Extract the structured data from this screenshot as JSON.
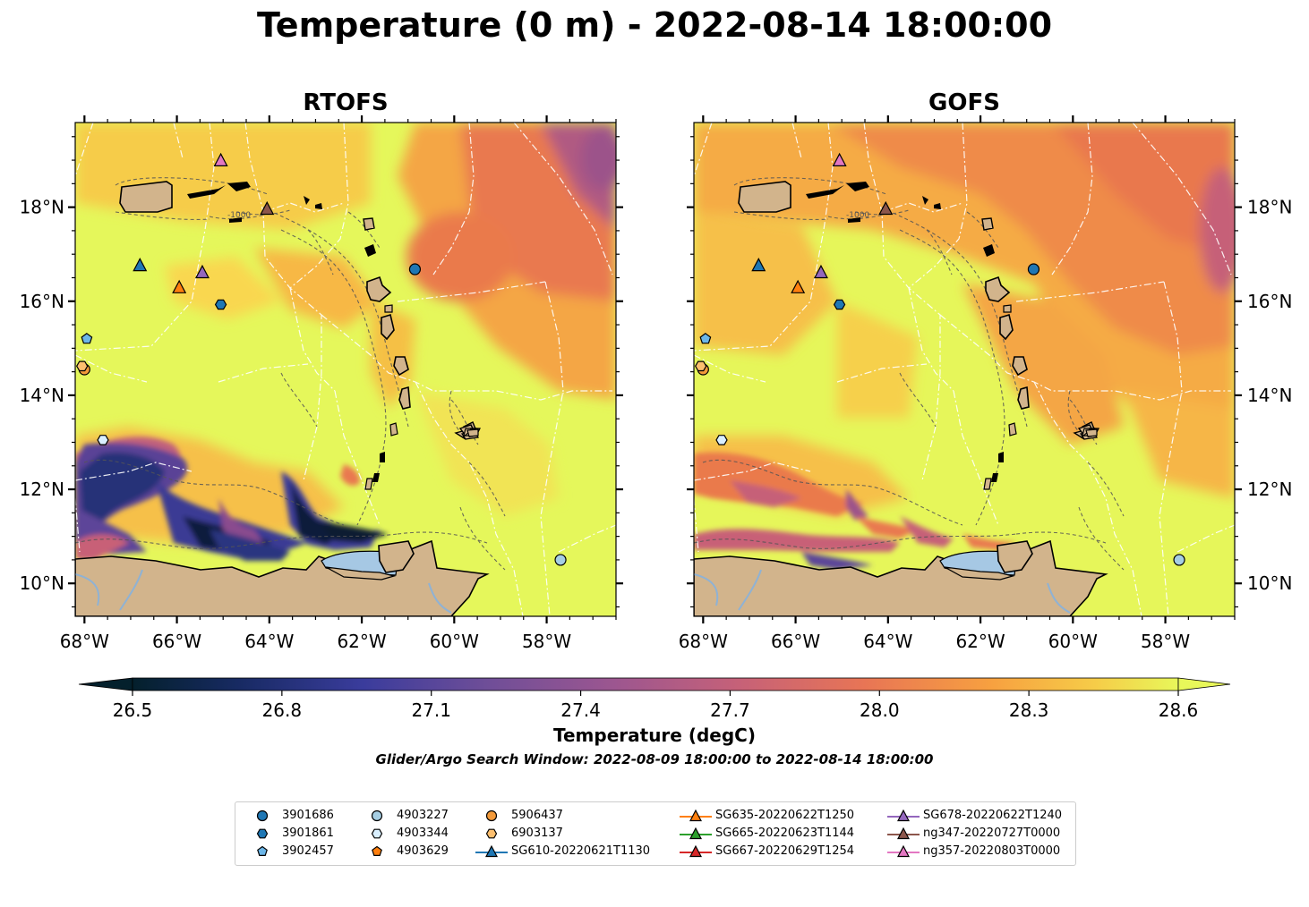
{
  "title": "Temperature (0 m) - 2022-08-14 18:00:00",
  "panels": [
    {
      "title": "RTOFS"
    },
    {
      "title": "GOFS"
    }
  ],
  "axes": {
    "lon_labels": [
      "68°W",
      "66°W",
      "64°W",
      "62°W",
      "60°W",
      "58°W"
    ],
    "lat_labels": [
      "18°N",
      "16°N",
      "14°N",
      "12°N",
      "10°N"
    ],
    "lon_range": [
      -68.2,
      -56.5
    ],
    "lat_range": [
      9.3,
      19.8
    ]
  },
  "colorbar": {
    "label": "Temperature (degC)",
    "ticks": [
      "26.5",
      "26.8",
      "27.1",
      "27.4",
      "27.7",
      "28.0",
      "28.3",
      "28.6"
    ],
    "range": [
      26.5,
      28.6
    ],
    "extend": "both",
    "colormap": "thermal"
  },
  "search_window": "Glider/Argo Search Window: 2022-08-09 18:00:00 to 2022-08-14 18:00:00",
  "contour_label": "-1000",
  "colors": {
    "land": "#d2b48c",
    "water_inland": "#a6c8e4",
    "warm": "#e5f75b",
    "mid": "#f6a540",
    "hot": "#e9774d",
    "cool": "#934c88",
    "cold": "#162552"
  },
  "legend": [
    {
      "label": "3901686",
      "marker": "circle",
      "color": "#1f77b4"
    },
    {
      "label": "3901861",
      "marker": "hexagon",
      "color": "#1f77b4"
    },
    {
      "label": "3902457",
      "marker": "pentagon",
      "color": "#6cb6e8"
    },
    {
      "label": "4903227",
      "marker": "circle",
      "color": "#a6cee3"
    },
    {
      "label": "4903344",
      "marker": "hexagon",
      "color": "#d9efff"
    },
    {
      "label": "4903629",
      "marker": "pentagon",
      "color": "#ff7f0e"
    },
    {
      "label": "5906437",
      "marker": "circle",
      "color": "#f39a3a"
    },
    {
      "label": "6903137",
      "marker": "hexagon",
      "color": "#fdbf6f"
    },
    {
      "label": "SG610-20220621T1130",
      "marker": "triangle-line",
      "color": "#1f77b4"
    },
    {
      "label": "SG635-20220622T1250",
      "marker": "triangle-line",
      "color": "#ff7f0e"
    },
    {
      "label": "SG665-20220623T1144",
      "marker": "triangle-line",
      "color": "#2ca02c"
    },
    {
      "label": "SG667-20220629T1254",
      "marker": "triangle-line",
      "color": "#d62728"
    },
    {
      "label": "SG678-20220622T1240",
      "marker": "triangle-line",
      "color": "#9467bd"
    },
    {
      "label": "ng347-20220727T0000",
      "marker": "triangle-line",
      "color": "#8c564b"
    },
    {
      "label": "ng357-20220803T0000",
      "marker": "triangle-line",
      "color": "#e377c2"
    }
  ],
  "observations": [
    {
      "id": "3901686",
      "lon": -60.85,
      "lat": 16.68
    },
    {
      "id": "3901861",
      "lon": -65.05,
      "lat": 15.93
    },
    {
      "id": "3902457",
      "lon": -67.95,
      "lat": 15.2
    },
    {
      "id": "4903227",
      "lon": -57.7,
      "lat": 10.5
    },
    {
      "id": "4903344",
      "lon": -67.6,
      "lat": 13.05
    },
    {
      "id": "5906437",
      "lon": -68.0,
      "lat": 14.55
    },
    {
      "id": "6903137",
      "lon": -68.05,
      "lat": 14.62
    },
    {
      "id": "SG610-20220621T1130",
      "lon": -66.8,
      "lat": 16.75
    },
    {
      "id": "SG635-20220622T1250",
      "lon": -65.95,
      "lat": 16.28
    },
    {
      "id": "SG678-20220622T1240",
      "lon": -65.45,
      "lat": 16.6
    },
    {
      "id": "ng347-20220727T0000",
      "lon": -64.05,
      "lat": 17.95
    },
    {
      "id": "ng357-20220803T0000",
      "lon": -65.05,
      "lat": 18.98
    }
  ]
}
